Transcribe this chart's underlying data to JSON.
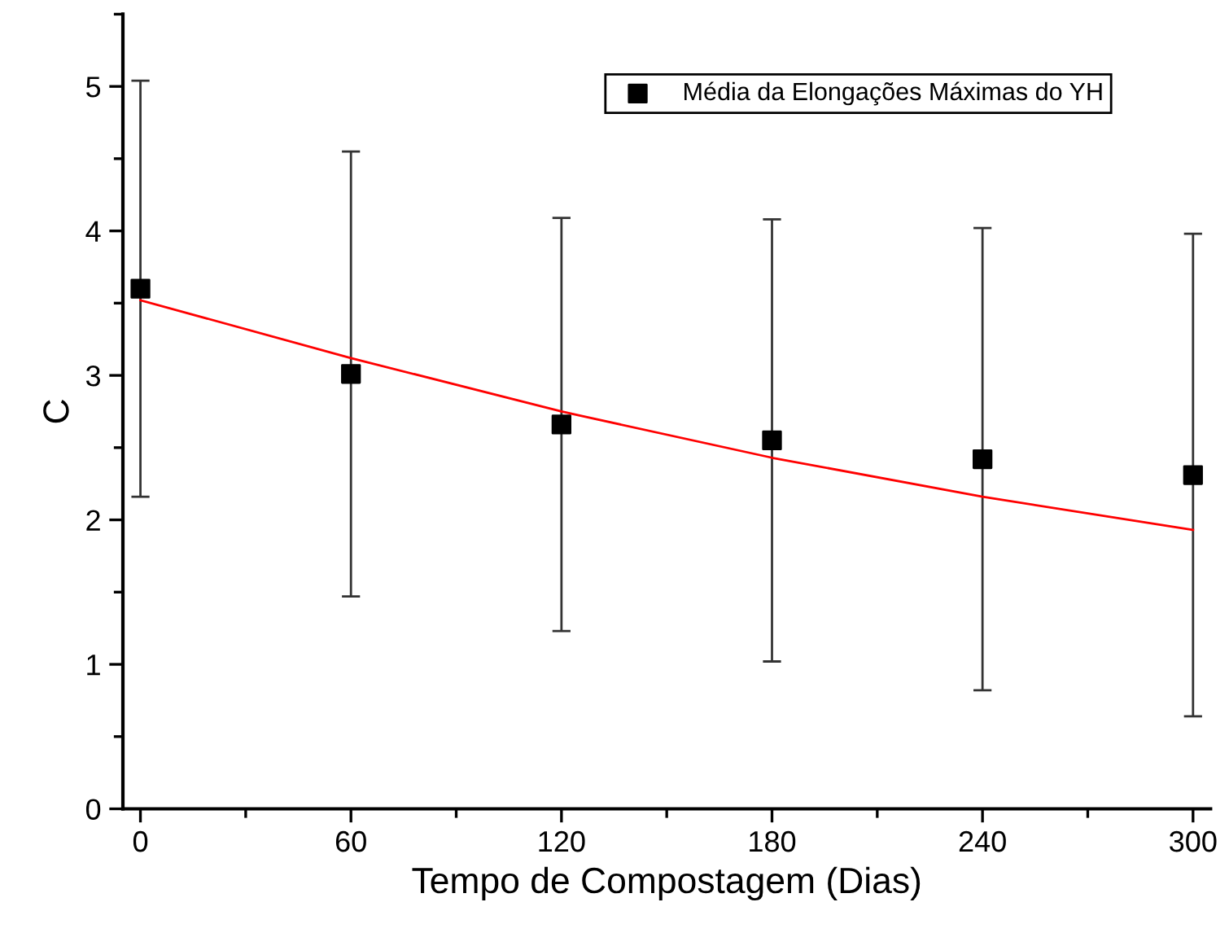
{
  "chart_data": {
    "type": "scatter",
    "xlabel": "Tempo de Compostagem (Dias)",
    "ylabel": "C",
    "xlim": [
      -5,
      305
    ],
    "ylim": [
      0,
      5.5
    ],
    "xticks": [
      0,
      60,
      120,
      180,
      240,
      300
    ],
    "yticks": [
      0,
      1,
      2,
      3,
      4,
      5
    ],
    "grid": false,
    "legend": "top right",
    "series": [
      {
        "name": "Média da Elongações Máximas do YH",
        "marker": "square",
        "color": "#000000",
        "x": [
          0,
          60,
          120,
          180,
          240,
          300
        ],
        "values": [
          3.6,
          3.01,
          2.66,
          2.55,
          2.42,
          2.31
        ],
        "errors": [
          1.44,
          1.54,
          1.43,
          1.53,
          1.6,
          1.67
        ]
      },
      {
        "type": "line",
        "marker": "none",
        "color": "#ff0000",
        "x": [
          0,
          60,
          120,
          180,
          240,
          300
        ],
        "values": [
          3.52,
          3.12,
          2.75,
          2.43,
          2.16,
          1.93
        ]
      }
    ]
  }
}
